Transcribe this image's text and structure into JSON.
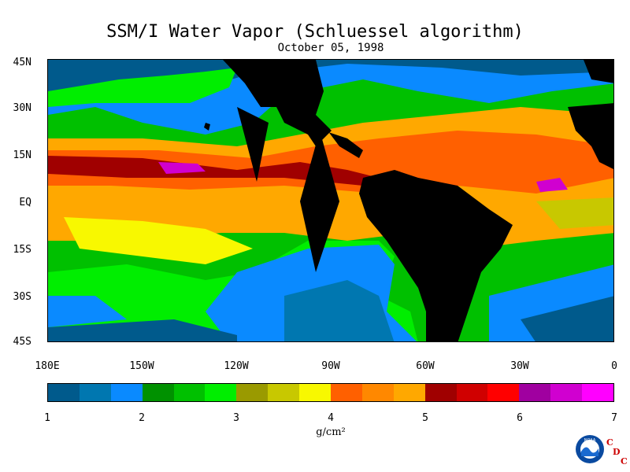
{
  "title": "SSM/I Water Vapor (Schluessel algorithm)",
  "date": "October 05, 1998",
  "lat_labels": [
    "45N",
    "30N",
    "15N",
    "EQ",
    "15S",
    "30S",
    "45S"
  ],
  "lon_labels": [
    "180E",
    "150W",
    "120W",
    "90W",
    "60W",
    "30W",
    "0"
  ],
  "colorbar": {
    "ticks": [
      "1",
      "2",
      "3",
      "4",
      "5",
      "6",
      "7"
    ],
    "units": "g/cm²",
    "colors": [
      "#005a8c",
      "#0077b0",
      "#0a8aff",
      "#009100",
      "#00c000",
      "#00ee00",
      "#9a9a00",
      "#c8c800",
      "#f8f800",
      "#ff6000",
      "#ff8800",
      "#ffa800",
      "#a00000",
      "#d00000",
      "#ff0000",
      "#a000a0",
      "#d000d0",
      "#ff00ff"
    ]
  },
  "logo": {
    "emblem_text": "NOAA",
    "letters": [
      "C",
      "D",
      "C"
    ]
  }
}
